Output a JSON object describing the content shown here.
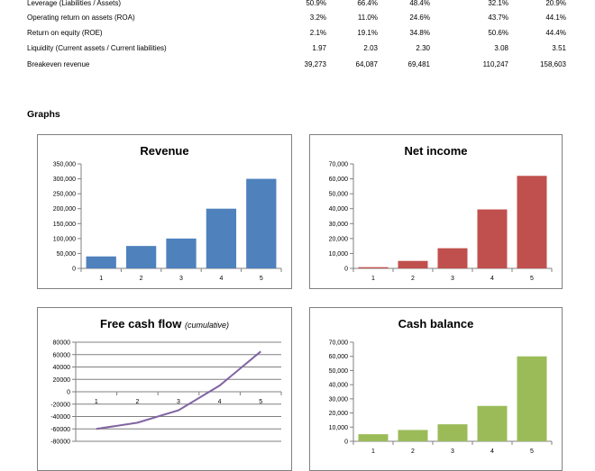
{
  "metrics": [
    {
      "label": "Leverage (Liabilities / Assets)",
      "values": [
        "50.9%",
        "66.4%",
        "48.4%",
        "32.1%",
        "20.9%"
      ]
    },
    {
      "label": "Operating return on assets (ROA)",
      "values": [
        "3.2%",
        "11.0%",
        "24.6%",
        "43.7%",
        "44.1%"
      ]
    },
    {
      "label": "Return on equity (ROE)",
      "values": [
        "2.1%",
        "19.1%",
        "34.8%",
        "50.6%",
        "44.4%"
      ]
    },
    {
      "label": "Liquidity (Current assets / Current liabilities)",
      "values": [
        "1.97",
        "2.03",
        "2.30",
        "3.08",
        "3.51"
      ]
    },
    {
      "label": "Breakeven revenue",
      "values": [
        "39,273",
        "64,087",
        "69,481",
        "110,247",
        "158,603"
      ]
    }
  ],
  "section_title": "Graphs",
  "chart_data": [
    {
      "id": "revenue",
      "type": "bar",
      "title": "Revenue",
      "subtitle": "",
      "categories": [
        "1",
        "2",
        "3",
        "4",
        "5"
      ],
      "values": [
        40000,
        75000,
        100000,
        200000,
        300000
      ],
      "ylim": [
        0,
        350000
      ],
      "yticks": [
        "0",
        "50,000",
        "100,000",
        "150,000",
        "200,000",
        "250,000",
        "300,000",
        "350,000"
      ],
      "color": "#4f81bd",
      "grid": false
    },
    {
      "id": "net_income",
      "type": "bar",
      "title": "Net income",
      "subtitle": "",
      "categories": [
        "1",
        "2",
        "3",
        "4",
        "5"
      ],
      "values": [
        800,
        5000,
        13500,
        39500,
        62000
      ],
      "ylim": [
        0,
        70000
      ],
      "yticks": [
        "0",
        "10,000",
        "20,000",
        "30,000",
        "40,000",
        "50,000",
        "60,000",
        "70,000"
      ],
      "color": "#c0504d",
      "grid": false
    },
    {
      "id": "free_cash_flow",
      "type": "line",
      "title": "Free cash flow",
      "subtitle": "(cumulative)",
      "categories": [
        "1",
        "2",
        "3",
        "4",
        "5"
      ],
      "values": [
        -60000,
        -50000,
        -30000,
        10000,
        65000
      ],
      "ylim": [
        -80000,
        80000
      ],
      "yticks": [
        "-80000",
        "-60000",
        "-40000",
        "-20000",
        "0",
        "20000",
        "40000",
        "60000",
        "80000"
      ],
      "color": "#8064a2",
      "grid": true
    },
    {
      "id": "cash_balance",
      "type": "bar",
      "title": "Cash balance",
      "subtitle": "",
      "categories": [
        "1",
        "2",
        "3",
        "4",
        "5"
      ],
      "values": [
        5000,
        8000,
        12000,
        25000,
        60000
      ],
      "ylim": [
        0,
        70000
      ],
      "yticks": [
        "0",
        "10,000",
        "20,000",
        "30,000",
        "40,000",
        "50,000",
        "60,000",
        "70,000"
      ],
      "color": "#9bbb59",
      "grid": false
    }
  ]
}
